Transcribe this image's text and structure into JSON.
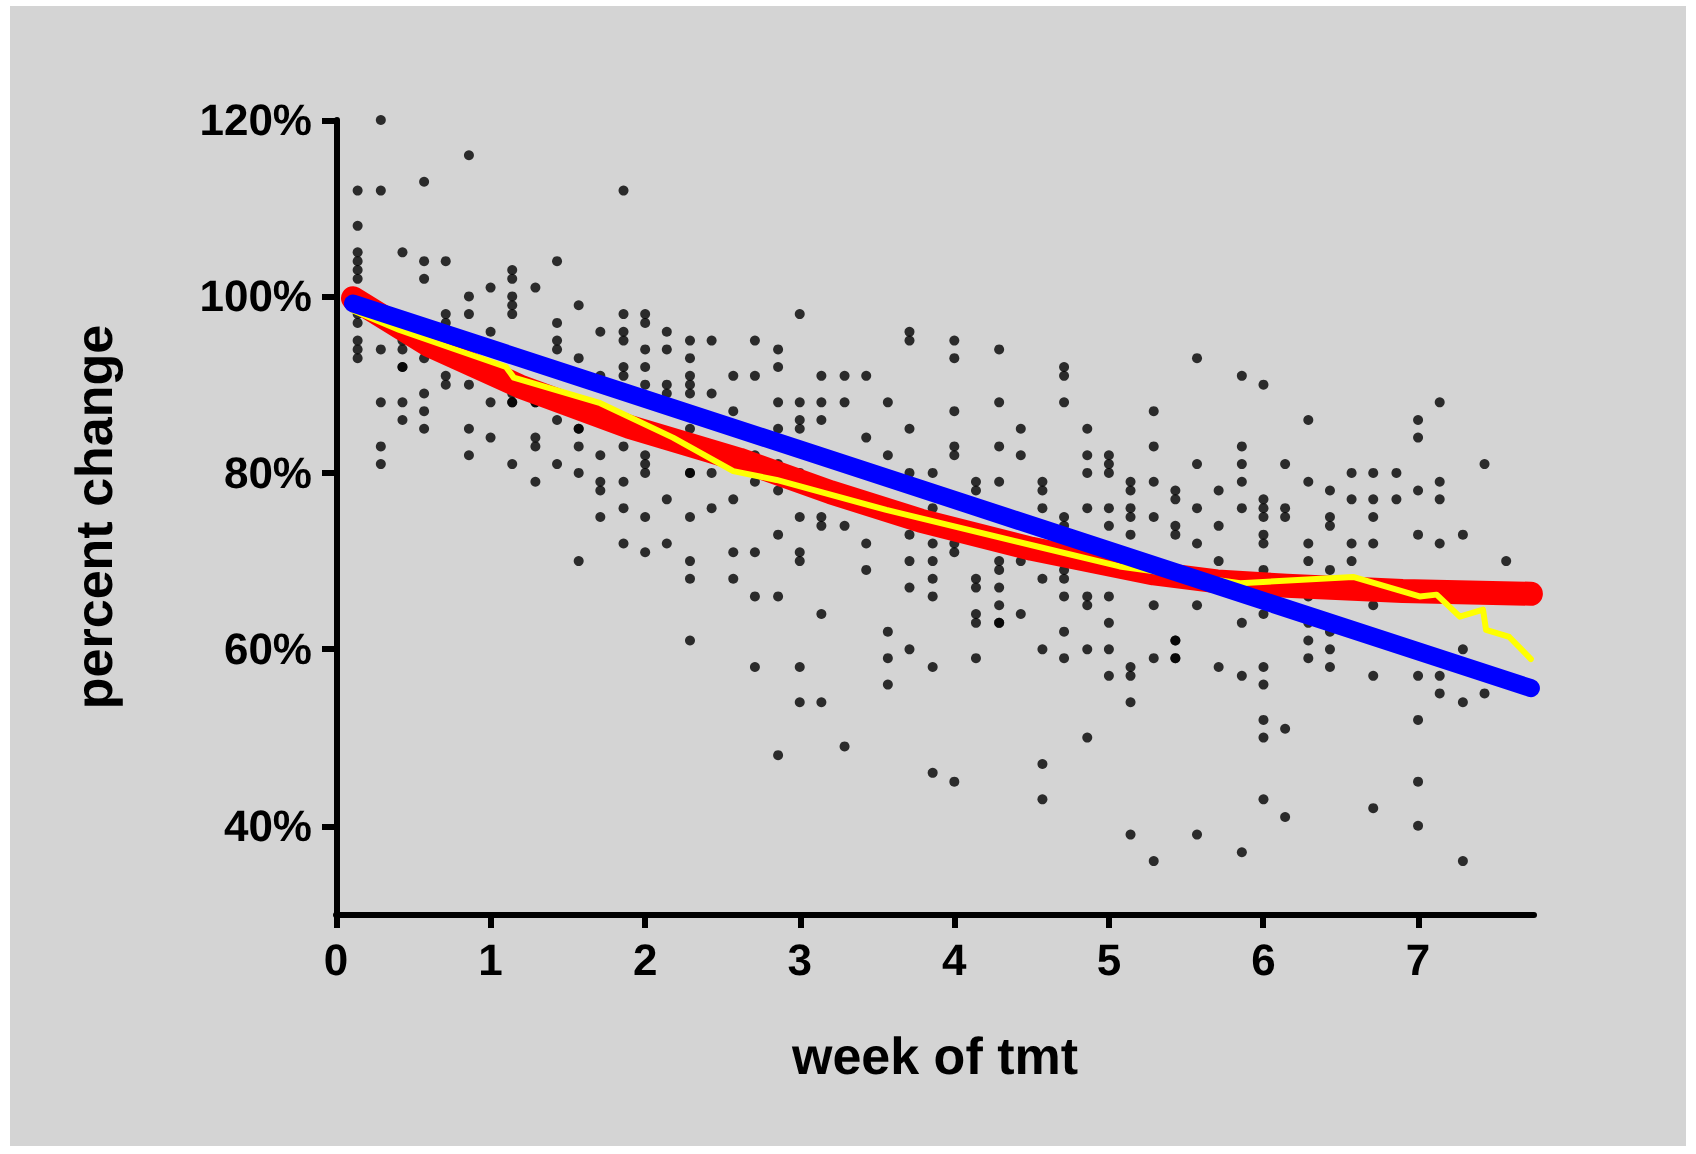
{
  "chart_data": {
    "type": "scatter",
    "xlabel": "week of tmt",
    "ylabel": "percent change",
    "xlim": [
      0,
      7.75
    ],
    "xticks": [
      0,
      1,
      2,
      3,
      4,
      5,
      6,
      7
    ],
    "ylim": [
      30,
      120
    ],
    "yticks": [
      {
        "value": 40,
        "label": "40%"
      },
      {
        "value": 60,
        "label": "60%"
      },
      {
        "value": 80,
        "label": "80%"
      },
      {
        "value": 100,
        "label": "100%"
      },
      {
        "value": 120,
        "label": "120%"
      }
    ],
    "series": [
      {
        "color": "#000000",
        "marker": "circle",
        "x": [
          0.14,
          0.14,
          0.14,
          0.14,
          0.14,
          0.14,
          0.14,
          0.14,
          0.14,
          0.14,
          0.14,
          0.29,
          0.29,
          0.29,
          0.29,
          0.29,
          0.29,
          0.43,
          0.43,
          0.43,
          0.43,
          0.43,
          0.43,
          0.43,
          0.57,
          0.57,
          0.57,
          0.57,
          0.57,
          0.57,
          0.57,
          0.71,
          0.71,
          0.71,
          0.71,
          0.71,
          0.86,
          0.86,
          0.86,
          0.86,
          0.86,
          0.86,
          1,
          1,
          1,
          1,
          1.14,
          1.14,
          1.14,
          1.14,
          1.14,
          1.14,
          1.14,
          1.14,
          1.14,
          1.29,
          1.29,
          1.29,
          1.29,
          1.29,
          1.29,
          1.43,
          1.43,
          1.43,
          1.43,
          1.43,
          1.43,
          1.57,
          1.57,
          1.57,
          1.57,
          1.57,
          1.57,
          1.57,
          1.71,
          1.71,
          1.71,
          1.71,
          1.71,
          1.71,
          1.86,
          1.86,
          1.86,
          1.86,
          1.86,
          1.86,
          1.86,
          1.86,
          1.86,
          1.86,
          2,
          2,
          2,
          2,
          2,
          2,
          2,
          2,
          2,
          2,
          2.14,
          2.14,
          2.14,
          2.14,
          2.14,
          2.14,
          2.29,
          2.29,
          2.29,
          2.29,
          2.29,
          2.29,
          2.29,
          2.29,
          2.29,
          2.29,
          2.29,
          2.29,
          2.43,
          2.43,
          2.43,
          2.43,
          2.57,
          2.57,
          2.57,
          2.57,
          2.57,
          2.71,
          2.71,
          2.71,
          2.71,
          2.71,
          2.71,
          2.71,
          2.86,
          2.86,
          2.86,
          2.86,
          2.86,
          2.86,
          2.86,
          2.86,
          2.86,
          3,
          3,
          3,
          3,
          3,
          3,
          3,
          3,
          3,
          3,
          3.14,
          3.14,
          3.14,
          3.14,
          3.14,
          3.14,
          3.14,
          3.29,
          3.29,
          3.29,
          3.29,
          3.43,
          3.43,
          3.43,
          3.43,
          3.57,
          3.57,
          3.57,
          3.57,
          3.57,
          3.71,
          3.71,
          3.71,
          3.71,
          3.71,
          3.71,
          3.71,
          3.71,
          3.86,
          3.86,
          3.86,
          3.86,
          3.86,
          3.86,
          3.86,
          3.86,
          4,
          4,
          4,
          4,
          4,
          4,
          4,
          4,
          4.14,
          4.14,
          4.14,
          4.14,
          4.14,
          4.14,
          4.14,
          4.29,
          4.29,
          4.29,
          4.29,
          4.29,
          4.29,
          4.29,
          4.29,
          4.29,
          4.29,
          4.43,
          4.43,
          4.43,
          4.43,
          4.57,
          4.57,
          4.57,
          4.57,
          4.57,
          4.57,
          4.57,
          4.71,
          4.71,
          4.71,
          4.71,
          4.71,
          4.71,
          4.71,
          4.71,
          4.71,
          4.71,
          4.86,
          4.86,
          4.86,
          4.86,
          4.86,
          4.86,
          4.86,
          4.86,
          5,
          5,
          5,
          5,
          5,
          5,
          5,
          5,
          5,
          5.14,
          5.14,
          5.14,
          5.14,
          5.14,
          5.14,
          5.14,
          5.14,
          5.14,
          5.29,
          5.29,
          5.29,
          5.29,
          5.29,
          5.29,
          5.29,
          5.43,
          5.43,
          5.43,
          5.43,
          5.43,
          5.43,
          5.43,
          5.43,
          5.57,
          5.57,
          5.57,
          5.57,
          5.57,
          5.57,
          5.71,
          5.71,
          5.71,
          5.71,
          5.86,
          5.86,
          5.86,
          5.86,
          5.86,
          5.86,
          5.86,
          5.86,
          6,
          6,
          6,
          6,
          6,
          6,
          6,
          6,
          6,
          6,
          6,
          6,
          6,
          6.14,
          6.14,
          6.14,
          6.14,
          6.14,
          6.29,
          6.29,
          6.29,
          6.29,
          6.29,
          6.29,
          6.29,
          6.29,
          6.43,
          6.43,
          6.43,
          6.43,
          6.43,
          6.43,
          6.43,
          6.57,
          6.57,
          6.57,
          6.57,
          6.71,
          6.71,
          6.71,
          6.71,
          6.71,
          6.71,
          6.71,
          6.86,
          6.86,
          7,
          7,
          7,
          7,
          7,
          7,
          7,
          7,
          7.14,
          7.14,
          7.14,
          7.14,
          7.14,
          7.14,
          7.29,
          7.29,
          7.29,
          7.29,
          7.43,
          7.43,
          7.57
        ],
        "values": [
          112,
          108,
          105,
          104,
          103,
          102,
          98,
          97,
          95,
          94,
          93,
          120,
          112,
          94,
          88,
          83,
          81,
          105,
          95,
          94,
          92,
          92,
          88,
          86,
          113,
          104,
          102,
          93,
          89,
          87,
          85,
          104,
          98,
          97,
          91,
          90,
          116,
          100,
          98,
          90,
          85,
          82,
          101,
          96,
          88,
          84,
          103,
          102,
          100,
          99,
          98,
          89,
          88,
          88,
          81,
          101,
          88,
          88,
          84,
          83,
          79,
          104,
          97,
          95,
          94,
          86,
          81,
          99,
          93,
          85,
          85,
          83,
          80,
          70,
          96,
          91,
          82,
          79,
          78,
          75,
          112,
          98,
          96,
          95,
          92,
          91,
          83,
          79,
          76,
          72,
          98,
          97,
          94,
          92,
          90,
          82,
          81,
          80,
          75,
          71,
          96,
          94,
          90,
          89,
          77,
          72,
          95,
          93,
          91,
          90,
          89,
          85,
          80,
          80,
          75,
          70,
          68,
          61,
          95,
          89,
          80,
          76,
          91,
          87,
          77,
          71,
          68,
          95,
          91,
          82,
          79,
          71,
          66,
          58,
          94,
          92,
          88,
          85,
          81,
          78,
          73,
          66,
          48,
          98,
          88,
          86,
          85,
          80,
          75,
          71,
          70,
          58,
          54,
          91,
          88,
          86,
          75,
          74,
          64,
          54,
          91,
          88,
          74,
          49,
          91,
          84,
          72,
          69,
          88,
          82,
          62,
          59,
          56,
          96,
          95,
          85,
          80,
          73,
          70,
          67,
          60,
          80,
          76,
          72,
          70,
          68,
          66,
          58,
          46,
          95,
          93,
          87,
          83,
          82,
          72,
          71,
          45,
          79,
          78,
          68,
          67,
          64,
          63,
          59,
          94,
          88,
          83,
          79,
          70,
          69,
          67,
          65,
          63,
          63,
          85,
          82,
          70,
          64,
          79,
          78,
          76,
          68,
          60,
          47,
          43,
          92,
          91,
          88,
          75,
          74,
          69,
          68,
          66,
          62,
          59,
          85,
          82,
          80,
          76,
          66,
          65,
          60,
          50,
          82,
          81,
          80,
          76,
          74,
          66,
          63,
          60,
          57,
          79,
          78,
          76,
          75,
          73,
          58,
          57,
          54,
          39,
          87,
          83,
          79,
          75,
          65,
          59,
          36,
          78,
          77,
          74,
          73,
          61,
          61,
          59,
          59,
          93,
          81,
          76,
          72,
          65,
          39,
          78,
          74,
          70,
          58,
          91,
          83,
          81,
          79,
          76,
          63,
          57,
          37,
          90,
          77,
          76,
          75,
          73,
          72,
          69,
          64,
          58,
          56,
          52,
          50,
          43,
          81,
          76,
          75,
          51,
          41,
          86,
          79,
          72,
          70,
          66,
          63,
          61,
          59,
          78,
          75,
          74,
          69,
          62,
          60,
          58,
          80,
          77,
          72,
          70,
          80,
          77,
          75,
          72,
          65,
          57,
          42,
          80,
          77,
          86,
          84,
          78,
          73,
          57,
          52,
          45,
          40,
          88,
          79,
          77,
          72,
          57,
          55,
          73,
          60,
          54,
          36,
          81,
          55,
          70
        ]
      },
      {
        "type": "line",
        "color": "#ff0000",
        "marker": "none",
        "x": [
          0.11,
          0.6,
          1.19,
          1.9,
          2.61,
          3.2,
          3.78,
          4.5,
          5.29,
          5.7,
          6.15,
          6.9,
          7.73
        ],
        "values": [
          99.8,
          94.5,
          89.8,
          85.2,
          81.5,
          77.8,
          74.6,
          71.4,
          68.6,
          67.7,
          67.2,
          66.6,
          66.3
        ]
      },
      {
        "type": "line",
        "color": "#ffff00",
        "marker": "none",
        "x": [
          0.11,
          0.41,
          1.1,
          1.15,
          1.71,
          2.18,
          2.57,
          2.85,
          3.56,
          4.55,
          5.07,
          5.85,
          6.58,
          7.01,
          7.12,
          7.27,
          7.42,
          7.44,
          7.59,
          7.73
        ],
        "values": [
          98.4,
          96.2,
          92.0,
          90.8,
          87.9,
          84.0,
          80.2,
          79.2,
          75.8,
          71.6,
          69.4,
          67.5,
          68.2,
          66.0,
          66.2,
          63.7,
          64.5,
          62.2,
          61.4,
          58.9
        ]
      },
      {
        "type": "line",
        "color": "#0000ff",
        "marker": "none",
        "x": [
          0.11,
          7.73
        ],
        "values": [
          99.2,
          55.6
        ]
      }
    ]
  }
}
